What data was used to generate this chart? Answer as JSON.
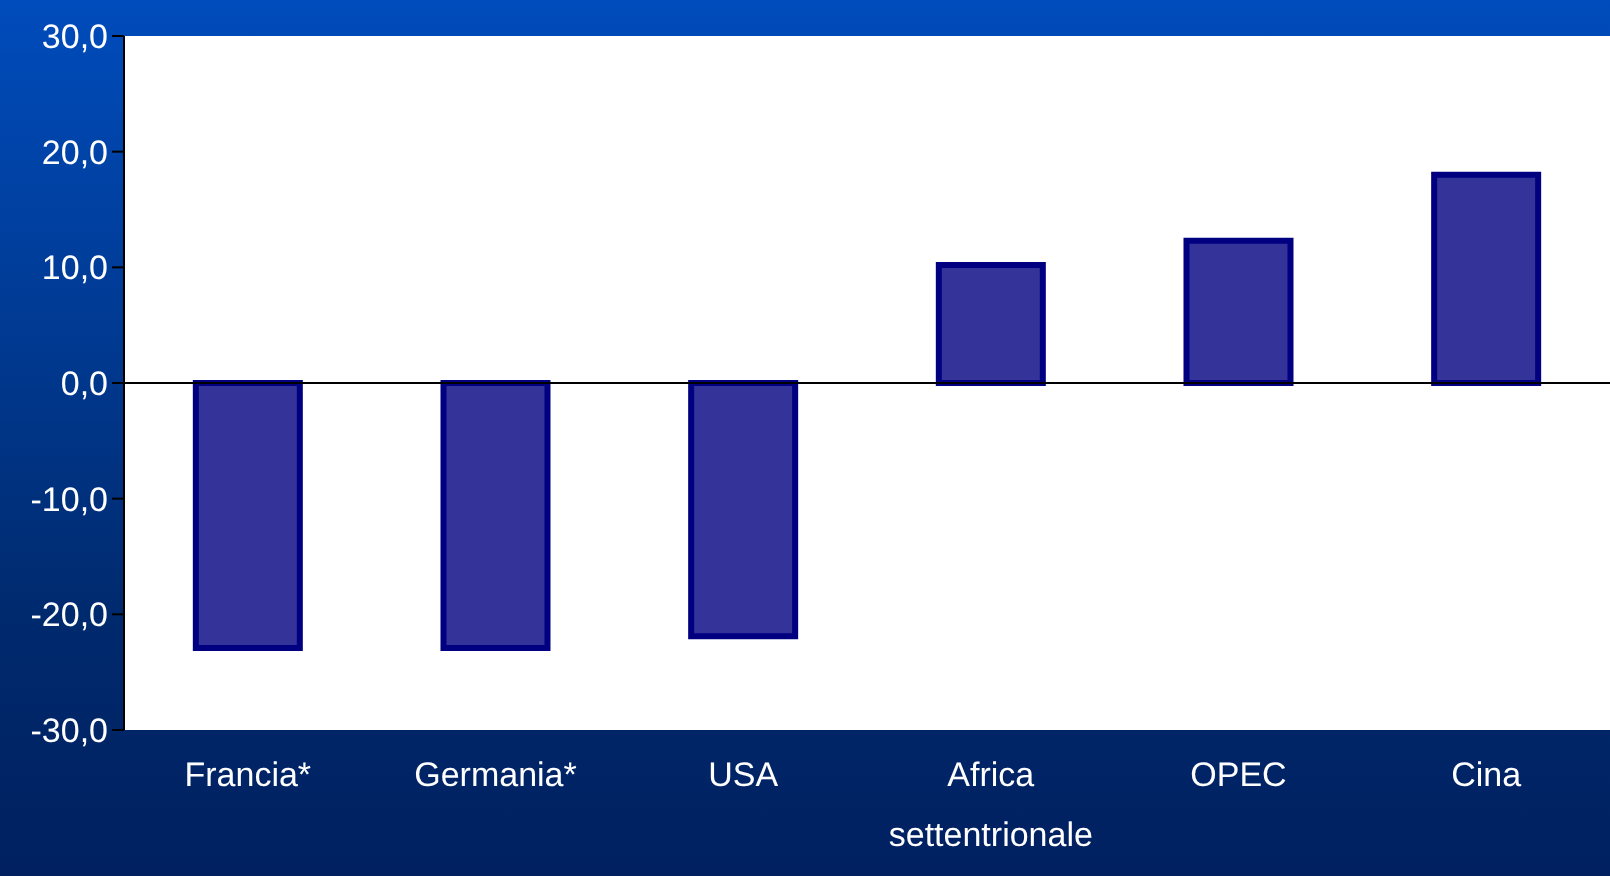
{
  "chart_data": {
    "type": "bar",
    "categories": [
      "Francia*",
      "Germania*",
      "USA",
      "Africa settentrionale",
      "OPEC",
      "Cina"
    ],
    "values": [
      -22.9,
      -22.9,
      -21.9,
      10.2,
      12.3,
      18.0
    ],
    "color": "#333399",
    "ylim": [
      -30,
      30
    ],
    "yticks": [
      {
        "value": -30,
        "label": "-30,0"
      },
      {
        "value": -20,
        "label": "-20,0"
      },
      {
        "value": -10,
        "label": "-10,0"
      },
      {
        "value": 0,
        "label": "0,0"
      },
      {
        "value": 10,
        "label": "10,0"
      },
      {
        "value": 20,
        "label": "20,0"
      },
      {
        "value": 30,
        "label": "30,0"
      }
    ],
    "legend": false
  }
}
